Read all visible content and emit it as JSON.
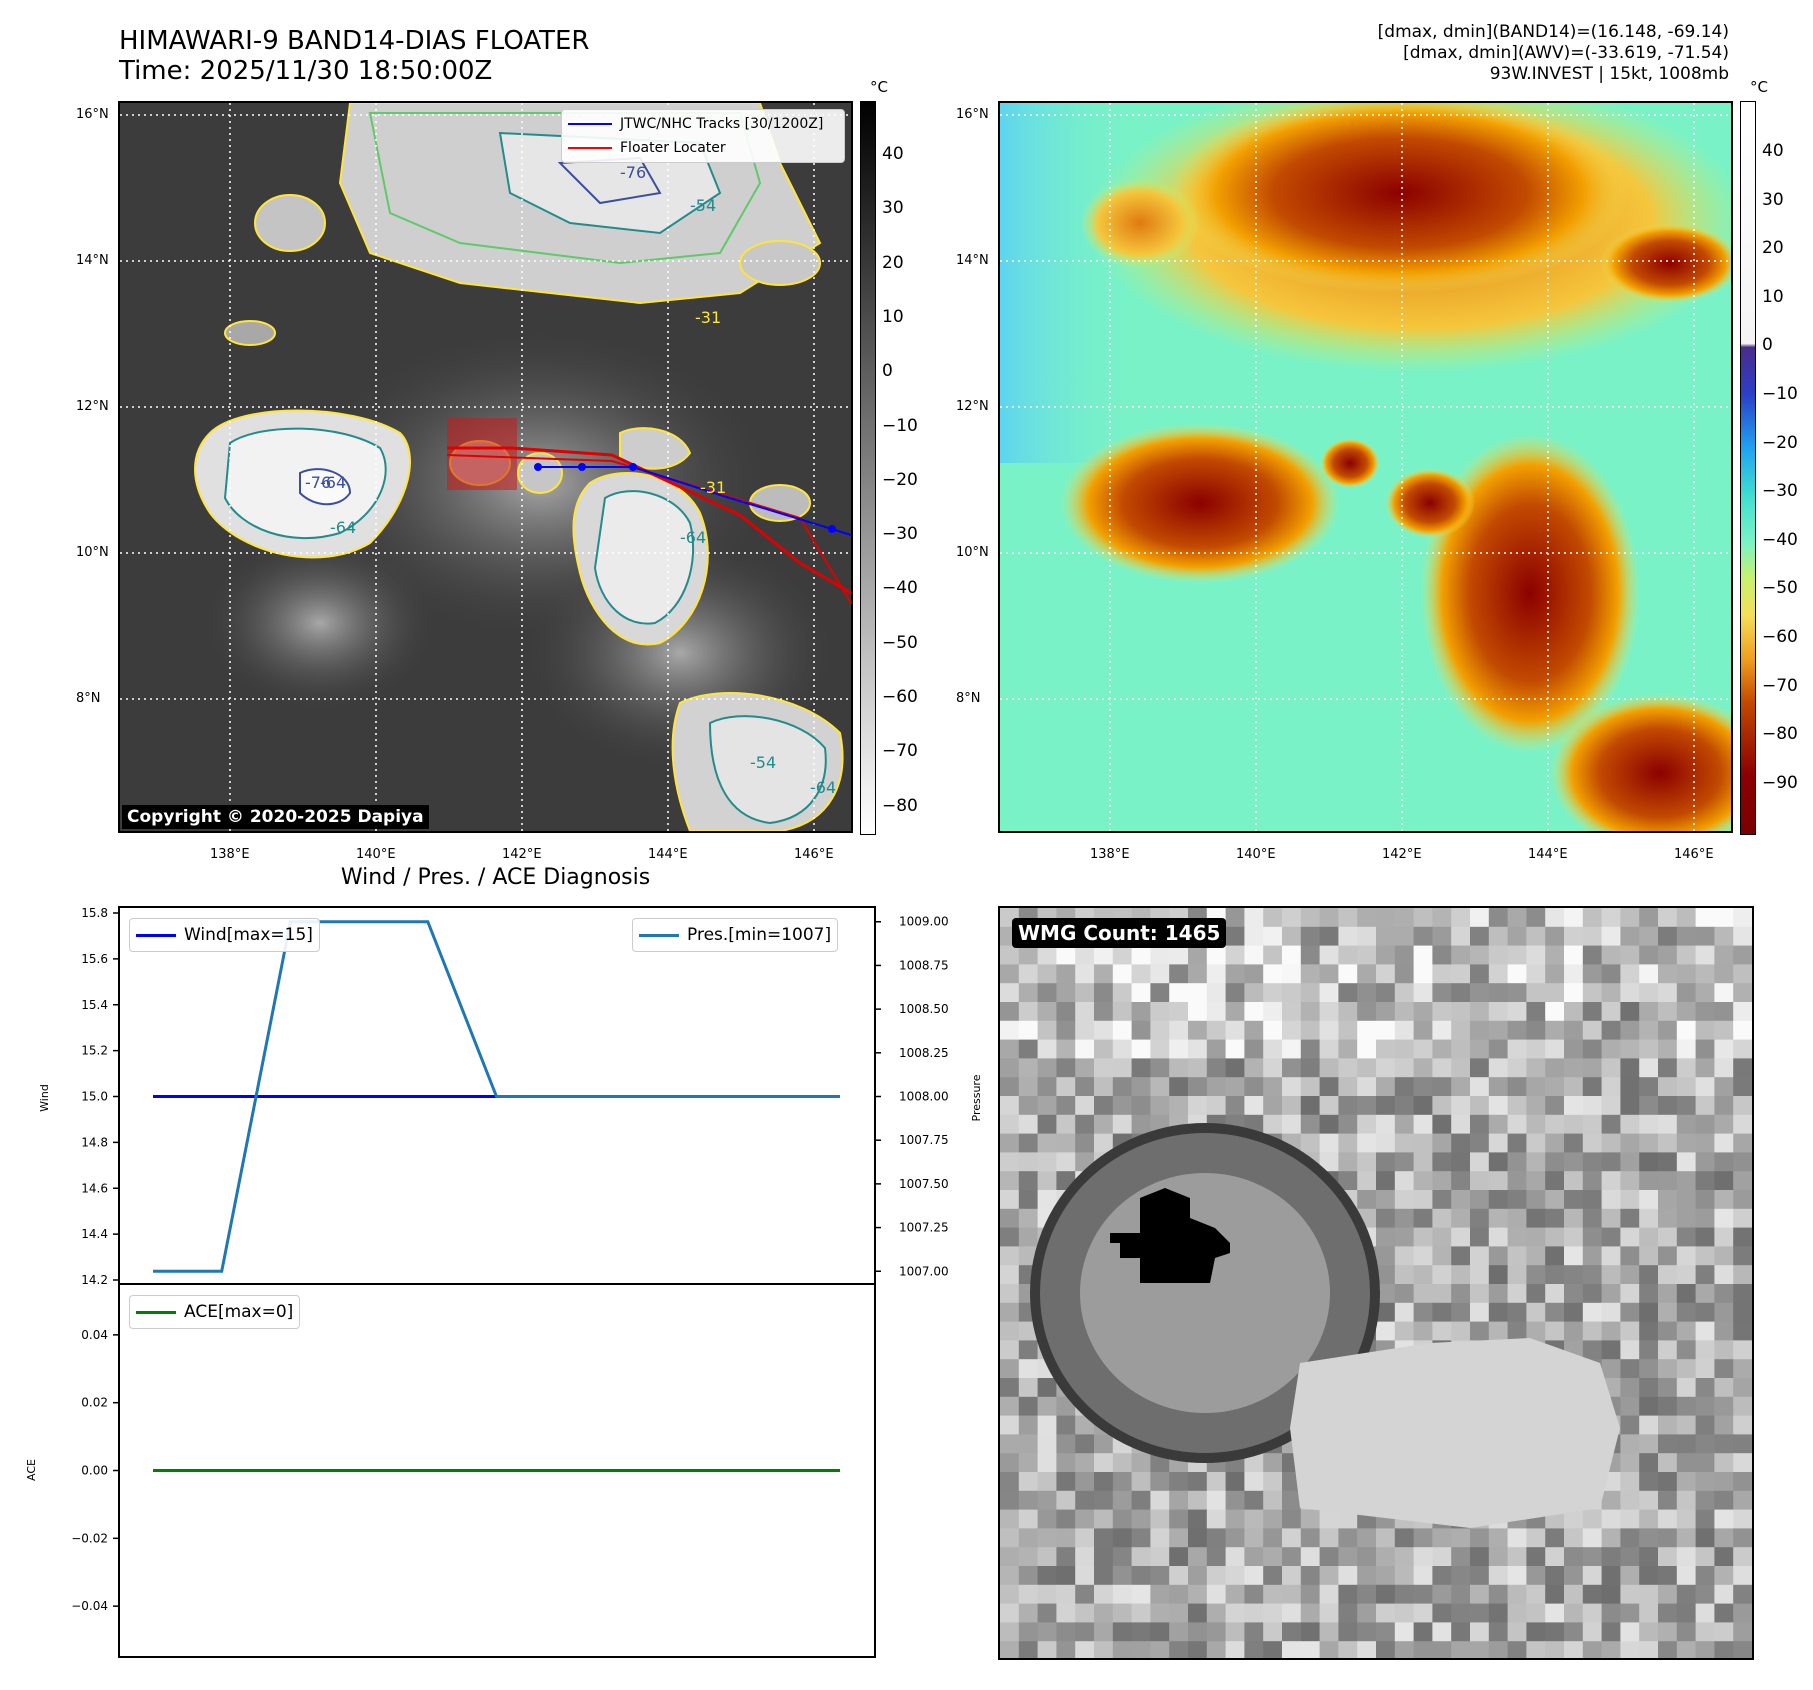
{
  "header": {
    "title_line1": "HIMAWARI-9 BAND14-DIAS FLOATER",
    "title_line2": "Time: 2025/11/30 18:50:00Z",
    "info_line1": "[dmax, dmin](BAND14)=(16.148, -69.14)",
    "info_line2": "[dmax, dmin](AWV)=(-33.619, -71.54)",
    "info_line3": "93W.INVEST | 15kt, 1008mb"
  },
  "map": {
    "lat_ticks": [
      "16°N",
      "14°N",
      "12°N",
      "10°N",
      "8°N"
    ],
    "lon_ticks": [
      "138°E",
      "140°E",
      "142°E",
      "144°E",
      "146°E"
    ],
    "copyright": "Copyright © 2020-2025 Dapiya",
    "legend": [
      {
        "label": "JTWC/NHC Tracks [30/1200Z]",
        "color": "#0000ff"
      },
      {
        "label": "Floater Locater",
        "color": "#ff0000"
      }
    ],
    "contour_labels": [
      "-76",
      "-54",
      "-31",
      "-64",
      "-76",
      "-64",
      "-31",
      "-64",
      "-54",
      "-64"
    ]
  },
  "colorbar_left": {
    "unit": "°C",
    "ticks": [
      "40",
      "30",
      "20",
      "10",
      "0",
      "−10",
      "−20",
      "−30",
      "−40",
      "−50",
      "−60",
      "−70",
      "−80"
    ]
  },
  "colorbar_right": {
    "unit": "°C",
    "ticks": [
      "40",
      "30",
      "20",
      "10",
      "0",
      "−10",
      "−20",
      "−30",
      "−40",
      "−50",
      "−60",
      "−70",
      "−80",
      "−90"
    ]
  },
  "diagnosis": {
    "title": "Wind / Pres. / ACE Diagnosis",
    "wind_ylabel": "Wind",
    "pres_ylabel": "Pressure",
    "ace_ylabel": "ACE",
    "wind_legend": "Wind[max=15]",
    "pres_legend": "Pres.[min=1007]",
    "ace_legend": "ACE[max=0]"
  },
  "wmg": {
    "label": "WMG Count: 1465"
  },
  "chart_data": [
    {
      "type": "line",
      "title": "Wind / Pres. / ACE Diagnosis",
      "ylabel": "Wind",
      "ylim": [
        14.2,
        15.8
      ],
      "yticks": [
        "15.8",
        "15.6",
        "15.4",
        "15.2",
        "15.0",
        "14.8",
        "14.6",
        "14.4",
        "14.2"
      ],
      "series": [
        {
          "name": "Wind[max=15]",
          "color": "#0000ff",
          "x": [
            0,
            1,
            2,
            3,
            4,
            5,
            6,
            7,
            8,
            9,
            10
          ],
          "values": [
            15,
            15,
            15,
            15,
            15,
            15,
            15,
            15,
            15,
            15,
            15
          ]
        }
      ]
    },
    {
      "type": "line",
      "ylabel": "Pressure",
      "ylim": [
        1006.95,
        1009.05
      ],
      "yticks": [
        "1009.00",
        "1008.75",
        "1008.50",
        "1008.25",
        "1008.00",
        "1007.75",
        "1007.50",
        "1007.25",
        "1007.00"
      ],
      "series": [
        {
          "name": "Pres.[min=1007]",
          "color": "#1f77b4",
          "x": [
            0,
            1,
            2,
            3,
            4,
            5,
            6,
            7,
            8,
            9,
            10
          ],
          "values": [
            1007,
            1007,
            1009,
            1009,
            1009,
            1008,
            1008,
            1008,
            1008,
            1008,
            1008
          ]
        }
      ]
    },
    {
      "type": "line",
      "ylabel": "ACE",
      "ylim": [
        -0.055,
        0.055
      ],
      "yticks": [
        "0.04",
        "0.02",
        "0.00",
        "−0.02",
        "−0.04"
      ],
      "series": [
        {
          "name": "ACE[max=0]",
          "color": "#008000",
          "x": [
            0,
            1,
            2,
            3,
            4,
            5,
            6,
            7,
            8,
            9,
            10
          ],
          "values": [
            0,
            0,
            0,
            0,
            0,
            0,
            0,
            0,
            0,
            0,
            0
          ]
        }
      ]
    }
  ]
}
